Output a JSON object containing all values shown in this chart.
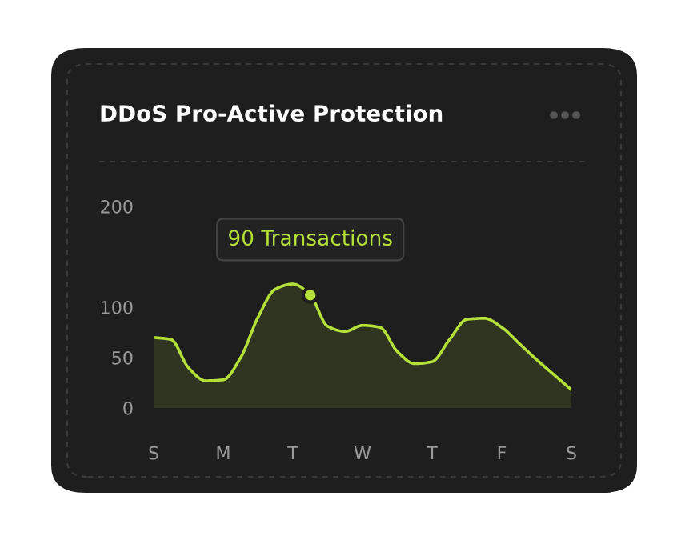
{
  "chart_data": {
    "type": "area",
    "title": "DDoS Pro-Active Protection",
    "categories": [
      "S",
      null,
      null,
      null,
      "M",
      null,
      null,
      null,
      "T",
      null,
      null,
      null,
      "W",
      null,
      null,
      null,
      "T",
      null,
      null,
      null,
      "F",
      null,
      null,
      null,
      "S"
    ],
    "series": [
      {
        "color": "#b5e03a",
        "values": [
          70,
          68,
          40,
          27,
          28,
          50,
          90,
          118,
          123,
          112,
          81,
          76,
          82,
          80,
          56,
          44,
          46,
          68,
          88,
          89,
          80,
          64,
          48,
          33,
          18
        ]
      }
    ],
    "ylim": [
      0,
      200
    ],
    "yticks": [
      0,
      50,
      100,
      200
    ],
    "grid": false,
    "annotations": [
      {
        "text": "90 Transactions",
        "y": 112
      }
    ]
  }
}
